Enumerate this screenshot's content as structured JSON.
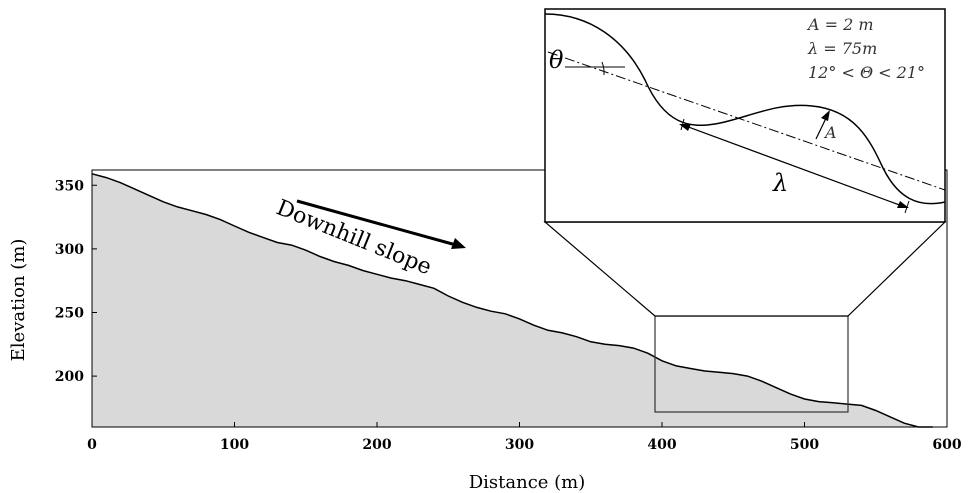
{
  "chart_data": {
    "type": "area",
    "title": "",
    "xlabel": "Distance (m)",
    "ylabel": "Elevation (m)",
    "xlim": [
      0,
      600
    ],
    "ylim": [
      160,
      362
    ],
    "xticks": [
      "0",
      "100",
      "200",
      "300",
      "400",
      "500",
      "600"
    ],
    "yticks": [
      "200",
      "250",
      "300",
      "350"
    ],
    "grid": false,
    "x": [
      0,
      10,
      20,
      30,
      40,
      50,
      60,
      70,
      80,
      90,
      100,
      110,
      120,
      130,
      140,
      150,
      160,
      170,
      180,
      190,
      200,
      210,
      220,
      230,
      240,
      250,
      260,
      270,
      280,
      290,
      300,
      310,
      320,
      330,
      340,
      350,
      360,
      370,
      380,
      390,
      400,
      410,
      420,
      430,
      440,
      450,
      460,
      470,
      480,
      490,
      500,
      510,
      520,
      530,
      540,
      550,
      560,
      570,
      580,
      590
    ],
    "y": [
      359,
      356,
      352,
      347,
      342,
      337,
      333,
      330,
      327,
      323,
      318,
      313,
      309,
      305,
      303,
      299,
      294,
      290,
      287,
      283,
      280,
      277,
      275,
      272,
      269,
      263,
      258,
      254,
      251,
      249,
      245,
      240,
      236,
      234,
      231,
      227,
      225,
      224,
      222,
      218,
      212,
      208,
      206,
      204,
      203,
      202,
      200,
      196,
      191,
      186,
      182,
      180,
      179,
      178,
      177,
      173,
      168,
      163,
      160,
      160
    ]
  },
  "annotations": {
    "downhill": "Downhill slope"
  },
  "inset": {
    "param_A": "A = 2 m",
    "param_lambda": "λ  = 75m",
    "param_theta": "12° < Θ < 21°",
    "theta_symbol": "θ",
    "A_label": "A",
    "lambda_symbol": "λ"
  }
}
